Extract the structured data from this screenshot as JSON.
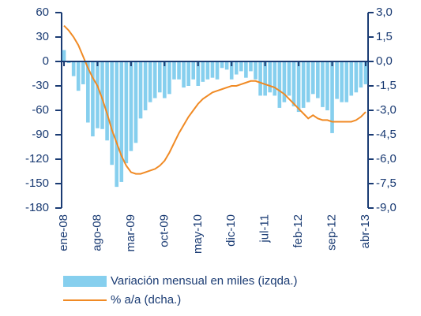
{
  "chart_data": {
    "type": "bar_line",
    "categories": [
      "ene-08",
      null,
      null,
      null,
      null,
      null,
      null,
      "ago-08",
      null,
      null,
      null,
      null,
      null,
      null,
      "mar-09",
      null,
      null,
      null,
      null,
      null,
      null,
      "oct-09",
      null,
      null,
      null,
      null,
      null,
      null,
      "may-10",
      null,
      null,
      null,
      null,
      null,
      null,
      "dic-10",
      null,
      null,
      null,
      null,
      null,
      null,
      "jul-11",
      null,
      null,
      null,
      null,
      null,
      null,
      "feb-12",
      null,
      null,
      null,
      null,
      null,
      null,
      "sep-12",
      null,
      null,
      null,
      null,
      null,
      null,
      "abr-13"
    ],
    "series": [
      {
        "name": "Variación mensual en miles (izqda.)",
        "type": "bar",
        "color": "#86cfee",
        "values": [
          14,
          -2,
          -18,
          -36,
          -28,
          -75,
          -92,
          -82,
          -83,
          -97,
          -127,
          -154,
          -148,
          -125,
          -110,
          -100,
          -70,
          -60,
          -50,
          -45,
          -38,
          -45,
          -40,
          -22,
          -22,
          -32,
          -30,
          -22,
          -30,
          -25,
          -22,
          -20,
          -22,
          -8,
          -10,
          -22,
          -16,
          -12,
          -20,
          -12,
          -22,
          -42,
          -42,
          -38,
          -42,
          -57,
          -50,
          -42,
          -55,
          -62,
          -57,
          -50,
          -40,
          -45,
          -56,
          -60,
          -88,
          -46,
          -50,
          -50,
          -42,
          -38,
          -32,
          -28
        ]
      },
      {
        "name": "% a/a (dcha.)",
        "type": "line",
        "axis": "y2",
        "color": "#f08a24",
        "values": [
          2.2,
          1.9,
          1.5,
          1.0,
          0.3,
          -0.4,
          -1.0,
          -1.5,
          -2.3,
          -3.2,
          -4.2,
          -5.0,
          -5.8,
          -6.4,
          -6.8,
          -6.9,
          -6.9,
          -6.8,
          -6.7,
          -6.6,
          -6.4,
          -6.1,
          -5.6,
          -5.0,
          -4.4,
          -3.9,
          -3.4,
          -3.0,
          -2.6,
          -2.3,
          -2.1,
          -1.9,
          -1.8,
          -1.7,
          -1.6,
          -1.5,
          -1.5,
          -1.4,
          -1.3,
          -1.2,
          -1.2,
          -1.3,
          -1.4,
          -1.5,
          -1.6,
          -1.8,
          -2.0,
          -2.3,
          -2.6,
          -2.9,
          -3.2,
          -3.5,
          -3.3,
          -3.5,
          -3.6,
          -3.6,
          -3.7,
          -3.7,
          -3.7,
          -3.7,
          -3.7,
          -3.6,
          -3.4,
          -3.1
        ]
      }
    ],
    "ylim": [
      -180,
      60
    ],
    "yticks": [
      60,
      30,
      0,
      -30,
      -60,
      -90,
      -120,
      -150,
      -180
    ],
    "y2lim": [
      -9,
      3
    ],
    "y2ticks": [
      {
        "value": 3,
        "label": "3,0"
      },
      {
        "value": 1.5,
        "label": "1,5"
      },
      {
        "value": 0,
        "label": "0,0"
      },
      {
        "value": -1.5,
        "label": "-1,5"
      },
      {
        "value": -3,
        "label": "-3,0"
      },
      {
        "value": -4.5,
        "label": "-4,5"
      },
      {
        "value": -6,
        "label": "-6,0"
      },
      {
        "value": -7.5,
        "label": "-7,5"
      },
      {
        "value": -9,
        "label": "-9,0"
      }
    ]
  }
}
